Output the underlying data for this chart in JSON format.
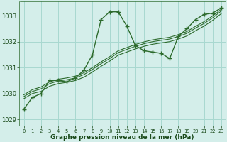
{
  "background_color": "#d4eeea",
  "grid_color": "#a8d8d0",
  "line_color": "#2d6b2d",
  "text_color": "#1a4a1a",
  "xlabel": "Graphe pression niveau de la mer (hPa)",
  "ylim": [
    1028.75,
    1033.55
  ],
  "xlim": [
    -0.5,
    23.5
  ],
  "yticks": [
    1029,
    1030,
    1031,
    1032,
    1033
  ],
  "xticks": [
    0,
    1,
    2,
    3,
    4,
    5,
    6,
    7,
    8,
    9,
    10,
    11,
    12,
    13,
    14,
    15,
    16,
    17,
    18,
    19,
    20,
    21,
    22,
    23
  ],
  "series0": [
    1029.4,
    1029.85,
    1030.0,
    1030.5,
    1030.5,
    1030.45,
    1030.6,
    1030.9,
    1031.5,
    1032.85,
    1033.15,
    1033.15,
    1032.6,
    1031.85,
    1031.65,
    1031.6,
    1031.55,
    1031.35,
    1032.2,
    1032.5,
    1032.85,
    1033.05,
    1033.1,
    1033.3
  ],
  "series1": [
    1029.8,
    1030.0,
    1030.08,
    1030.28,
    1030.38,
    1030.43,
    1030.5,
    1030.63,
    1030.83,
    1031.05,
    1031.25,
    1031.48,
    1031.6,
    1031.72,
    1031.82,
    1031.9,
    1031.95,
    1032.0,
    1032.1,
    1032.22,
    1032.42,
    1032.6,
    1032.82,
    1033.08
  ],
  "series2": [
    1029.88,
    1030.08,
    1030.18,
    1030.38,
    1030.48,
    1030.53,
    1030.6,
    1030.73,
    1030.93,
    1031.15,
    1031.35,
    1031.58,
    1031.7,
    1031.82,
    1031.92,
    1032.0,
    1032.05,
    1032.1,
    1032.2,
    1032.32,
    1032.52,
    1032.7,
    1032.92,
    1033.18
  ],
  "series3": [
    1029.95,
    1030.15,
    1030.25,
    1030.45,
    1030.55,
    1030.6,
    1030.67,
    1030.8,
    1031.0,
    1031.22,
    1031.42,
    1031.65,
    1031.77,
    1031.89,
    1031.99,
    1032.07,
    1032.12,
    1032.17,
    1032.27,
    1032.39,
    1032.59,
    1032.77,
    1032.99,
    1033.25
  ]
}
